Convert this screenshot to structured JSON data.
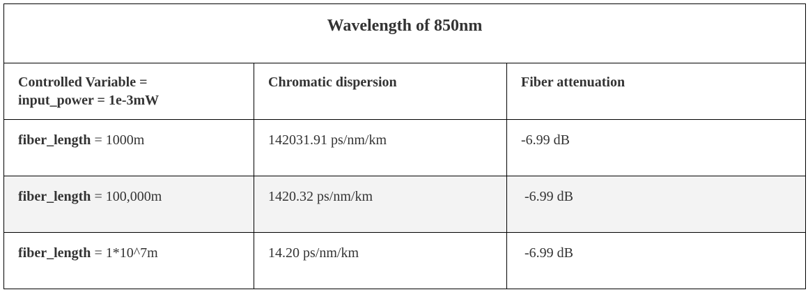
{
  "table": {
    "title": "Wavelength of 850nm",
    "headers": {
      "control_line1": "Controlled Variable =",
      "control_line2": "input_power = 1e-3mW",
      "dispersion": "Chromatic dispersion",
      "attenuation": "Fiber attenuation"
    },
    "rows": [
      {
        "var_label": "fiber_length",
        "var_value": " = 1000m",
        "dispersion": "142031.91 ps/nm/km",
        "attenuation": "-6.99 dB"
      },
      {
        "var_label": "fiber_length",
        "var_value": " = 100,000m",
        "dispersion": "1420.32 ps/nm/km",
        "attenuation": " -6.99 dB"
      },
      {
        "var_label": "fiber_length",
        "var_value": " = 1*10^7m",
        "dispersion": "14.20 ps/nm/km",
        "attenuation": " -6.99 dB"
      }
    ]
  }
}
